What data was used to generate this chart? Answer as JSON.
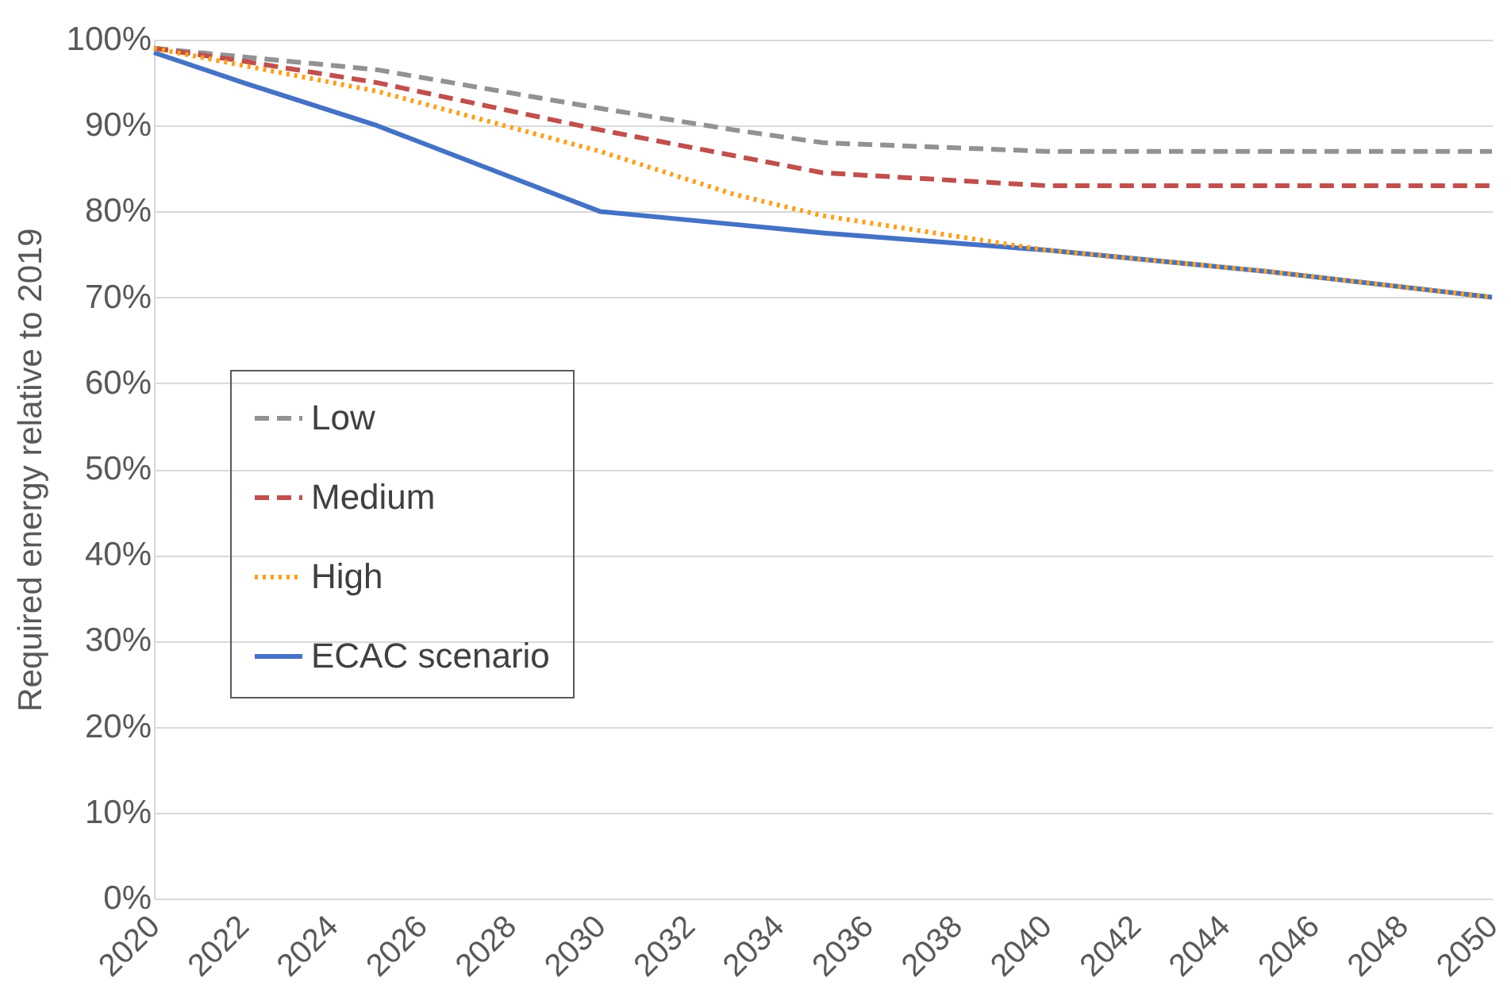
{
  "chart_data": {
    "type": "line",
    "ylabel": "Required energy relative to 2019",
    "x": [
      2020,
      2022,
      2025,
      2030,
      2033,
      2035,
      2040,
      2045,
      2050
    ],
    "series": [
      {
        "name": "Low",
        "color": "#929292",
        "line_style": "dashed",
        "values": [
          99,
          98,
          96.5,
          92,
          89.5,
          88,
          87,
          87,
          87
        ]
      },
      {
        "name": "Medium",
        "color": "#c0504d",
        "line_style": "dashed",
        "values": [
          99,
          97.5,
          95,
          89.5,
          86.5,
          84.5,
          83,
          83,
          83
        ]
      },
      {
        "name": "High",
        "color": "#ff9f1a",
        "line_style": "dotted",
        "values": [
          99,
          97,
          94,
          87,
          82,
          79.5,
          75.5,
          73,
          70
        ]
      },
      {
        "name": "ECAC scenario",
        "color": "#4472c4",
        "line_style": "solid",
        "values": [
          98.5,
          95,
          90,
          80,
          78.5,
          77.5,
          75.5,
          73,
          70
        ]
      }
    ],
    "xlim": [
      2020,
      2050
    ],
    "xticks": [
      2020,
      2022,
      2024,
      2026,
      2028,
      2030,
      2032,
      2034,
      2036,
      2038,
      2040,
      2042,
      2044,
      2046,
      2048,
      2050
    ],
    "ylim": [
      0,
      100
    ],
    "yticks": [
      {
        "value": 0,
        "label": "0%"
      },
      {
        "value": 10,
        "label": "10%"
      },
      {
        "value": 20,
        "label": "20%"
      },
      {
        "value": 30,
        "label": "30%"
      },
      {
        "value": 40,
        "label": "40%"
      },
      {
        "value": 50,
        "label": "50%"
      },
      {
        "value": 60,
        "label": "60%"
      },
      {
        "value": 70,
        "label": "70%"
      },
      {
        "value": 80,
        "label": "80%"
      },
      {
        "value": 90,
        "label": "90%"
      },
      {
        "value": 100,
        "label": "100%"
      }
    ],
    "grid": "y",
    "legend": "left"
  }
}
